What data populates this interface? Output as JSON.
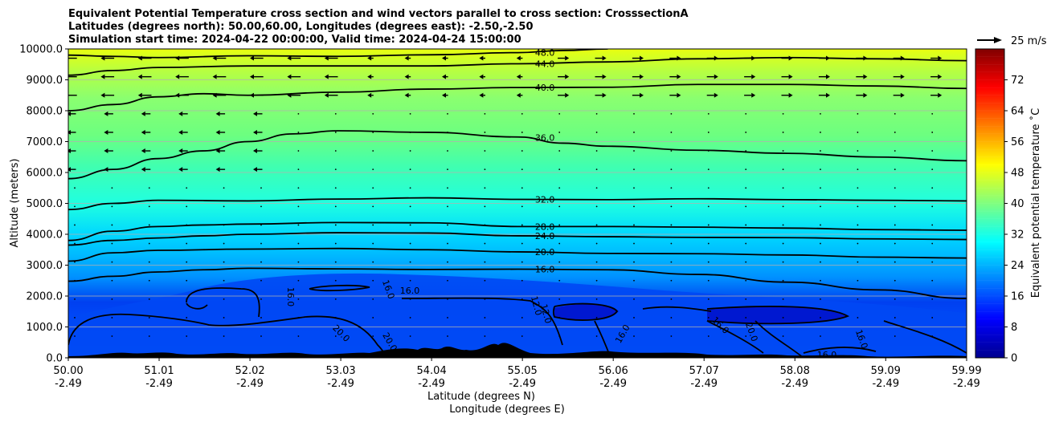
{
  "chart_data": {
    "type": "heatmap",
    "title_lines": [
      "Equivalent Potential Temperature cross section and wind vectors parallel to cross section: CrosssectionA",
      "Latitudes (degrees north): 50.00,60.00, Longitudes (degrees east): -2.50,-2.50",
      "Simulation start time: 2024-04-22 00:00:00, Valid time: 2024-04-24 15:00:00"
    ],
    "ylabel": "Altitude (meters)",
    "xlabel_1": "Latitude (degrees N)",
    "xlabel_2": "Longitude (degrees E)",
    "ylim": [
      0,
      10000
    ],
    "xlim": [
      50.0,
      59.99
    ],
    "y_ticks": [
      "0.0",
      "1000.0",
      "2000.0",
      "3000.0",
      "4000.0",
      "5000.0",
      "6000.0",
      "7000.0",
      "8000.0",
      "9000.0",
      "10000.0"
    ],
    "y_tick_values": [
      0,
      1000,
      2000,
      3000,
      4000,
      5000,
      6000,
      7000,
      8000,
      9000,
      10000
    ],
    "x_ticks": [
      {
        "lat": "50.00",
        "lon": "-2.49",
        "value": 50.0
      },
      {
        "lat": "51.01",
        "lon": "-2.49",
        "value": 51.01
      },
      {
        "lat": "52.02",
        "lon": "-2.49",
        "value": 52.02
      },
      {
        "lat": "53.03",
        "lon": "-2.49",
        "value": 53.03
      },
      {
        "lat": "54.04",
        "lon": "-2.49",
        "value": 54.04
      },
      {
        "lat": "55.05",
        "lon": "-2.49",
        "value": 55.05
      },
      {
        "lat": "56.06",
        "lon": "-2.49",
        "value": 56.06
      },
      {
        "lat": "57.07",
        "lon": "-2.49",
        "value": 57.07
      },
      {
        "lat": "58.08",
        "lon": "-2.49",
        "value": 58.08
      },
      {
        "lat": "59.09",
        "lon": "-2.49",
        "value": 59.09
      },
      {
        "lat": "59.99",
        "lon": "-2.49",
        "value": 59.99
      }
    ],
    "grid": "horizontal",
    "colorbar": {
      "label": "Equivalent potential temperature ˚C",
      "min": 0,
      "max": 80,
      "ticks": [
        "0",
        "8",
        "16",
        "24",
        "32",
        "40",
        "48",
        "56",
        "64",
        "72"
      ],
      "tick_values": [
        0,
        8,
        16,
        24,
        32,
        40,
        48,
        56,
        64,
        72
      ],
      "colormap": "jet"
    },
    "quiver_key": "25 m/s",
    "contours": [
      {
        "label": "16.0",
        "level": 16,
        "points": [
          [
            50.0,
            2480
          ],
          [
            50.5,
            2640
          ],
          [
            51.0,
            2780
          ],
          [
            51.5,
            2850
          ],
          [
            52.0,
            2900
          ],
          [
            53.0,
            2880
          ],
          [
            54.0,
            2860
          ],
          [
            55.0,
            2870
          ],
          [
            56.0,
            2850
          ],
          [
            57.0,
            2700
          ],
          [
            58.0,
            2450
          ],
          [
            59.0,
            2200
          ],
          [
            59.99,
            1920
          ]
        ]
      },
      {
        "label": "20.0",
        "level": 20,
        "points": [
          [
            50.0,
            3130
          ],
          [
            50.5,
            3400
          ],
          [
            51.0,
            3480
          ],
          [
            52.0,
            3520
          ],
          [
            53.0,
            3540
          ],
          [
            54.0,
            3500
          ],
          [
            55.0,
            3430
          ],
          [
            56.0,
            3380
          ],
          [
            57.0,
            3370
          ],
          [
            58.0,
            3330
          ],
          [
            59.0,
            3260
          ],
          [
            59.99,
            3230
          ]
        ]
      },
      {
        "label": "24.0",
        "level": 24,
        "points": [
          [
            50.0,
            3650
          ],
          [
            50.5,
            3800
          ],
          [
            51.0,
            3880
          ],
          [
            51.5,
            3950
          ],
          [
            52.0,
            4000
          ],
          [
            53.0,
            4050
          ],
          [
            54.0,
            4040
          ],
          [
            55.0,
            3950
          ],
          [
            56.0,
            3920
          ],
          [
            57.0,
            3900
          ],
          [
            58.0,
            3890
          ],
          [
            59.0,
            3850
          ],
          [
            59.99,
            3830
          ]
        ]
      },
      {
        "label": "28.0",
        "level": 28,
        "points": [
          [
            50.0,
            3800
          ],
          [
            50.5,
            4100
          ],
          [
            51.0,
            4250
          ],
          [
            51.5,
            4300
          ],
          [
            52.0,
            4330
          ],
          [
            53.0,
            4380
          ],
          [
            54.0,
            4370
          ],
          [
            55.0,
            4250
          ],
          [
            56.0,
            4250
          ],
          [
            57.0,
            4230
          ],
          [
            58.0,
            4200
          ],
          [
            59.0,
            4150
          ],
          [
            59.99,
            4130
          ]
        ]
      },
      {
        "label": "32.0",
        "level": 32,
        "points": [
          [
            50.0,
            4800
          ],
          [
            50.5,
            5000
          ],
          [
            51.0,
            5100
          ],
          [
            52.0,
            5080
          ],
          [
            53.0,
            5140
          ],
          [
            54.0,
            5180
          ],
          [
            55.0,
            5130
          ],
          [
            56.0,
            5120
          ],
          [
            57.0,
            5150
          ],
          [
            58.0,
            5120
          ],
          [
            59.0,
            5100
          ],
          [
            59.99,
            5080
          ]
        ]
      },
      {
        "label": "36.0",
        "level": 36,
        "points": [
          [
            50.0,
            5800
          ],
          [
            50.5,
            6100
          ],
          [
            51.0,
            6450
          ],
          [
            51.5,
            6700
          ],
          [
            52.0,
            7000
          ],
          [
            52.5,
            7250
          ],
          [
            53.0,
            7350
          ],
          [
            54.0,
            7300
          ],
          [
            55.0,
            7150
          ],
          [
            55.5,
            6950
          ],
          [
            56.0,
            6850
          ],
          [
            57.0,
            6720
          ],
          [
            58.0,
            6620
          ],
          [
            59.0,
            6500
          ],
          [
            59.99,
            6380
          ]
        ]
      },
      {
        "label": "40.0",
        "level": 40,
        "points": [
          [
            50.0,
            8000
          ],
          [
            50.5,
            8200
          ],
          [
            51.0,
            8450
          ],
          [
            51.5,
            8550
          ],
          [
            52.0,
            8500
          ],
          [
            53.0,
            8600
          ],
          [
            54.0,
            8700
          ],
          [
            55.0,
            8750
          ],
          [
            56.0,
            8760
          ],
          [
            57.0,
            8850
          ],
          [
            58.0,
            8850
          ],
          [
            59.0,
            8800
          ],
          [
            59.99,
            8720
          ]
        ]
      },
      {
        "label": "44.0",
        "level": 44,
        "points": [
          [
            50.0,
            9150
          ],
          [
            50.5,
            9300
          ],
          [
            51.0,
            9400
          ],
          [
            52.0,
            9450
          ],
          [
            53.0,
            9450
          ],
          [
            54.0,
            9450
          ],
          [
            55.0,
            9520
          ],
          [
            56.0,
            9580
          ],
          [
            57.0,
            9680
          ],
          [
            58.0,
            9720
          ],
          [
            59.0,
            9680
          ],
          [
            59.99,
            9620
          ]
        ]
      },
      {
        "label": "48.0",
        "level": 48,
        "points": [
          [
            50.0,
            9800
          ],
          [
            50.5,
            9760
          ],
          [
            51.0,
            9720
          ],
          [
            52.0,
            9780
          ],
          [
            53.0,
            9760
          ],
          [
            54.0,
            9810
          ],
          [
            55.0,
            9880
          ],
          [
            55.5,
            9950
          ],
          [
            56.0,
            10000
          ]
        ]
      }
    ],
    "annotation_labels": [
      "16.0",
      "16.0",
      "16.0",
      "20.0",
      "20.0",
      "12.0",
      "12.0",
      "16.0",
      "16.0",
      "16.0",
      "16.0",
      "20.0"
    ]
  }
}
